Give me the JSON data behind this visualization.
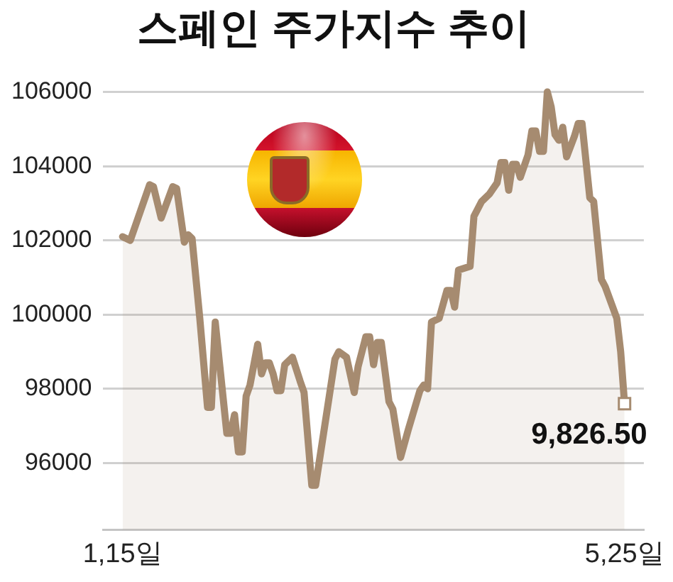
{
  "chart_data": {
    "type": "area",
    "title": "스페인 주가지수 추이",
    "x": [
      "--01-15",
      "--01-17",
      "--01-22",
      "--01-23",
      "--01-25",
      "--01-28",
      "--01-29",
      "--01-31",
      "--02-01",
      "--02-02",
      "--02-04",
      "--02-06",
      "--02-07",
      "--02-08",
      "--02-11",
      "--02-12",
      "--02-13",
      "--02-14",
      "--02-15",
      "--02-16",
      "--02-17",
      "--02-19",
      "--02-20",
      "--02-21",
      "--02-22",
      "--02-23",
      "--02-24",
      "--02-25",
      "--02-26",
      "--02-28",
      "--03-02",
      "--03-03",
      "--03-05",
      "--03-06",
      "--03-11",
      "--03-12",
      "--03-14",
      "--03-16",
      "--03-17",
      "--03-19",
      "--03-20",
      "--03-21",
      "--03-22",
      "--03-23",
      "--03-25",
      "--03-26",
      "--03-28",
      "--03-30",
      "--04-02",
      "--04-03",
      "--04-04",
      "--04-05",
      "--04-07",
      "--04-09",
      "--04-10",
      "--04-11",
      "--04-12",
      "--04-15",
      "--04-16",
      "--04-18",
      "--04-20",
      "--04-22",
      "--04-23",
      "--04-24",
      "--04-25",
      "--04-26",
      "--04-27",
      "--04-28",
      "--04-30",
      "--05-01",
      "--05-02",
      "--05-03",
      "--05-04",
      "--05-05",
      "--05-06",
      "--05-07",
      "--05-08",
      "--05-09",
      "--05-10",
      "--05-12",
      "--05-13",
      "--05-14",
      "--05-16",
      "--05-17",
      "--05-19",
      "--05-20",
      "--05-23",
      "--05-24",
      "--05-25"
    ],
    "values": [
      102100,
      102000,
      103500,
      103450,
      102600,
      103450,
      103400,
      101950,
      102150,
      102050,
      99900,
      97500,
      97500,
      99800,
      96800,
      96800,
      97300,
      96300,
      96300,
      97800,
      98100,
      99200,
      98400,
      98700,
      98700,
      98400,
      97950,
      97950,
      98650,
      98850,
      98200,
      97900,
      95400,
      95400,
      98800,
      99000,
      98850,
      97900,
      98600,
      99400,
      99400,
      98650,
      99250,
      99250,
      97650,
      97450,
      96150,
      96900,
      97950,
      98100,
      98000,
      99800,
      99900,
      100650,
      100650,
      100200,
      101200,
      101300,
      102650,
      103050,
      103250,
      103550,
      104100,
      104100,
      103350,
      104050,
      104050,
      103700,
      104300,
      104950,
      104950,
      104400,
      104400,
      106000,
      105600,
      104850,
      104700,
      105050,
      104250,
      104800,
      105150,
      105150,
      103150,
      103050,
      100950,
      100750,
      99900,
      99000,
      97600
    ],
    "color": "#a68b70",
    "xlim": [
      "--01-10",
      "--05-30"
    ],
    "xticks": [
      {
        "value": "--01-15",
        "label": "1,15일"
      },
      {
        "value": "--05-25",
        "label": "5,25일"
      }
    ],
    "ylim": [
      94200,
      106000
    ],
    "yticks": [
      96000,
      98000,
      100000,
      102000,
      104000,
      106000
    ],
    "grid": "y",
    "annotations": [
      {
        "text": "9,826.50",
        "x": "--05-25",
        "y": 97600
      }
    ]
  }
}
